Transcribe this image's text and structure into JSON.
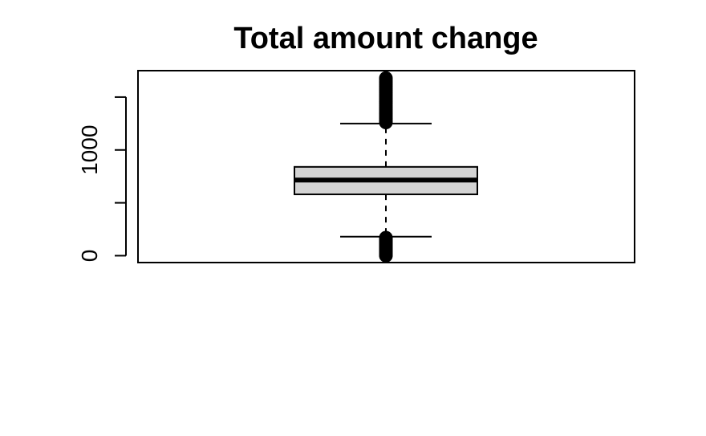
{
  "chart_data": {
    "type": "boxplot",
    "title": "Total amount change",
    "xlabel": "",
    "ylabel": "",
    "ylim": [
      -65,
      1750
    ],
    "yticks": [
      0,
      500,
      1000,
      1500
    ],
    "ytick_labels": [
      "0",
      "",
      "1000",
      ""
    ],
    "grid": false,
    "box": {
      "min_whisker": 180,
      "q1": 580,
      "median": 715,
      "q3": 840,
      "max_whisker": 1250
    },
    "outliers_low": [
      0,
      10,
      20,
      30,
      40,
      50,
      60,
      70,
      80,
      90,
      100,
      110,
      120,
      130,
      140,
      150,
      160,
      170
    ],
    "outliers_high": [
      1260,
      1280,
      1300,
      1320,
      1340,
      1360,
      1380,
      1400,
      1420,
      1440,
      1460,
      1480,
      1500,
      1520,
      1540,
      1560,
      1580,
      1600,
      1620,
      1640,
      1660,
      1680
    ],
    "colors": {
      "box_fill": "#d3d3d3",
      "stroke": "#000000"
    }
  }
}
